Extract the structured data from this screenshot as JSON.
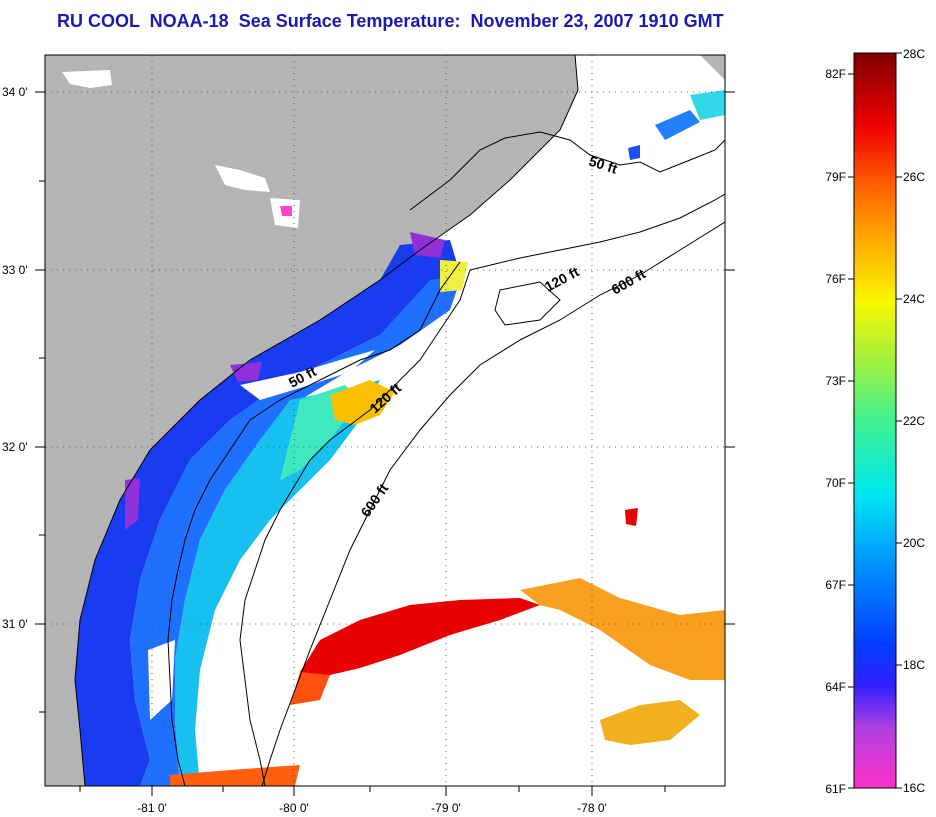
{
  "title": "RU COOL  NOAA-18  Sea Surface Temperature:  November 23, 2007 1910 GMT",
  "map": {
    "lat_labels": [
      "34 0'",
      "33 0'",
      "32 0'",
      "31 0'"
    ],
    "lon_labels": [
      "-81 0'",
      "-80 0'",
      "-79 0'",
      "-78 0'"
    ],
    "contour_labels": [
      {
        "text": "50 ft"
      },
      {
        "text": "50 ft"
      },
      {
        "text": "120 ft"
      },
      {
        "text": "120 ft"
      },
      {
        "text": "600 ft"
      },
      {
        "text": "600 ft"
      }
    ],
    "colors": {
      "land": "#b4b4b4",
      "cloud": "#ffffff"
    }
  },
  "colorbar": {
    "fahrenheit_labels": [
      "82F",
      "79F",
      "76F",
      "73F",
      "70F",
      "67F",
      "64F",
      "61F"
    ],
    "celsius_labels": [
      "28C",
      "26C",
      "24C",
      "22C",
      "20C",
      "18C",
      "16C"
    ]
  }
}
